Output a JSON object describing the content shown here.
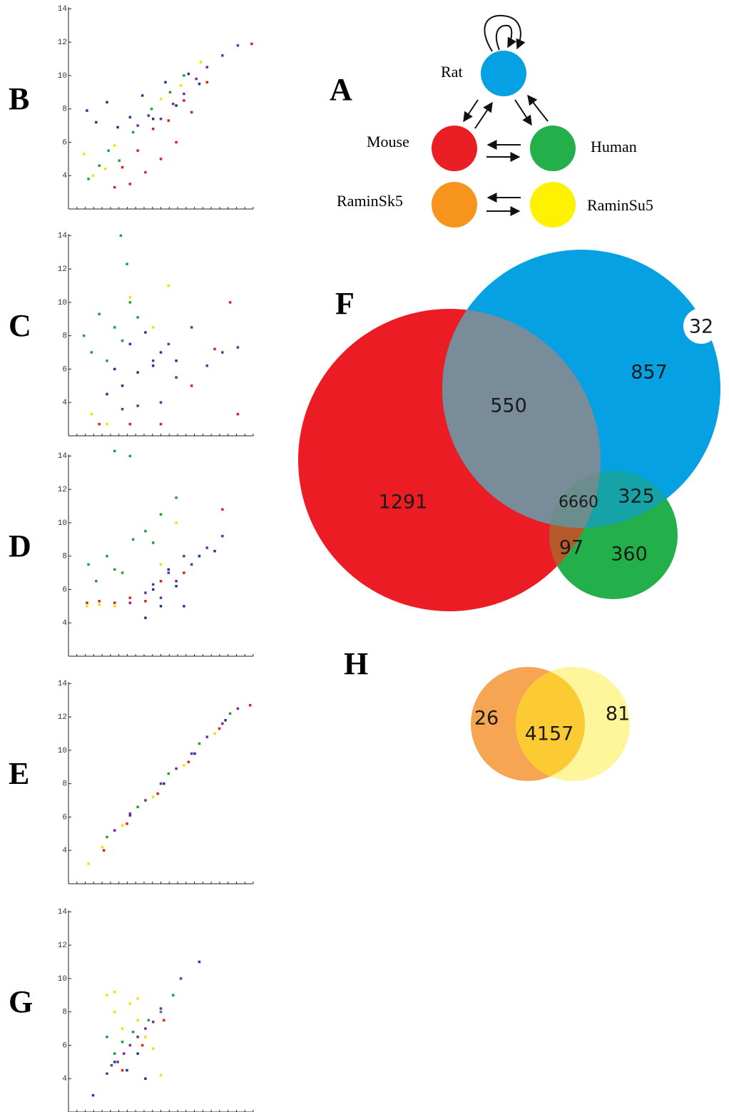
{
  "chart_data": [
    {
      "type": "scatter",
      "panel_label": "B",
      "xlim": [
        2,
        14
      ],
      "ylim": [
        2,
        14.1
      ],
      "yticks": [
        4,
        6,
        8,
        10,
        12,
        14
      ],
      "series": [
        {
          "color": "#1f3a93",
          "x": [
            3.2,
            3.8,
            4.5,
            5.2,
            6.0,
            6.8,
            7.5,
            8.3,
            9.0,
            9.8,
            10.5
          ],
          "y": [
            7.9,
            7.2,
            8.4,
            6.9,
            7.5,
            8.8,
            7.4,
            9.6,
            8.2,
            10.1,
            9.5
          ]
        },
        {
          "color": "#22a040",
          "x": [
            3.3,
            4.0,
            4.6,
            5.3,
            6.2,
            7.4,
            8.6,
            9.5
          ],
          "y": [
            3.8,
            4.6,
            5.5,
            4.9,
            6.6,
            8.0,
            9.0,
            10.0
          ]
        },
        {
          "color": "#f2e200",
          "x": [
            3.0,
            3.6,
            4.4,
            5.0,
            8.0,
            9.3,
            10.6
          ],
          "y": [
            5.3,
            4.0,
            4.4,
            5.8,
            8.6,
            9.4,
            10.8
          ]
        },
        {
          "color": "#e02020",
          "x": [
            5.0,
            5.5,
            6.0,
            6.5,
            7.0,
            7.5,
            8.0,
            8.5,
            9.0,
            9.5,
            10.0,
            11.0,
            13.9
          ],
          "y": [
            3.3,
            4.5,
            3.5,
            5.5,
            4.2,
            6.8,
            5.0,
            7.3,
            6.0,
            8.5,
            7.8,
            9.6,
            11.9
          ]
        },
        {
          "color": "#7b2a9a",
          "x": [
            6.5,
            7.2,
            8.0,
            8.8,
            9.5,
            10.3,
            11.0,
            12.0,
            13.0
          ],
          "y": [
            7.0,
            7.6,
            7.4,
            8.3,
            8.9,
            9.8,
            10.5,
            11.2,
            11.8
          ]
        }
      ]
    },
    {
      "type": "scatter",
      "panel_label": "C",
      "xlim": [
        2,
        14
      ],
      "ylim": [
        2,
        14.1
      ],
      "yticks": [
        4,
        6,
        8,
        10,
        12,
        14
      ],
      "series": [
        {
          "color": "#22a040",
          "x": [
            3.0,
            3.5,
            4.0,
            4.5,
            5.0,
            5.5,
            6.0,
            6.5,
            5.4,
            5.8
          ],
          "y": [
            8.0,
            7.0,
            9.3,
            6.5,
            8.5,
            7.7,
            10.0,
            9.1,
            14.0,
            12.3
          ]
        },
        {
          "color": "#1f3a93",
          "x": [
            4.5,
            5.0,
            5.5,
            6.0,
            6.5,
            7.0,
            7.5,
            8.0,
            9.0
          ],
          "y": [
            4.5,
            6.0,
            5.0,
            7.5,
            5.8,
            8.2,
            6.2,
            7.0,
            6.5
          ]
        },
        {
          "color": "#e02020",
          "x": [
            4.0,
            6.0,
            8.0,
            10.0,
            11.5,
            12.5,
            13.0
          ],
          "y": [
            2.7,
            2.7,
            2.7,
            5.0,
            7.2,
            10.0,
            3.3
          ]
        },
        {
          "color": "#f2e200",
          "x": [
            3.5,
            4.5,
            6.0,
            7.5,
            8.5
          ],
          "y": [
            3.3,
            2.7,
            10.3,
            8.5,
            11.0
          ]
        },
        {
          "color": "#7b2a9a",
          "x": [
            5.5,
            6.5,
            7.5,
            8.0,
            8.5,
            9.0,
            10.0,
            11.0,
            12.0,
            13.0
          ],
          "y": [
            3.6,
            3.8,
            6.5,
            4.0,
            7.5,
            5.5,
            8.5,
            6.2,
            7.0,
            7.3
          ]
        }
      ]
    },
    {
      "type": "scatter",
      "panel_label": "D",
      "xlim": [
        2,
        14
      ],
      "ylim": [
        2,
        14.1
      ],
      "yticks": [
        4,
        6,
        8,
        10,
        12,
        14
      ],
      "series": [
        {
          "color": "#22a040",
          "x": [
            3.3,
            3.8,
            4.5,
            5.0,
            5.5,
            6.2,
            7.0,
            7.5,
            8.0,
            9.0,
            5.0,
            6.0
          ],
          "y": [
            7.5,
            6.5,
            8.0,
            7.2,
            7.0,
            9.0,
            9.5,
            8.8,
            10.5,
            11.5,
            14.3,
            14.0
          ]
        },
        {
          "color": "#e02020",
          "x": [
            3.2,
            4.0,
            5.0,
            6.0,
            7.0,
            8.0,
            9.5,
            12.0
          ],
          "y": [
            5.2,
            5.3,
            5.2,
            5.5,
            5.3,
            6.5,
            7.0,
            10.8
          ]
        },
        {
          "color": "#f2e200",
          "x": [
            3.2,
            4.0,
            5.0,
            8.0,
            9.0
          ],
          "y": [
            5.0,
            5.1,
            5.0,
            7.5,
            10.0
          ]
        },
        {
          "color": "#1f3a93",
          "x": [
            7.0,
            7.5,
            8.0,
            8.5,
            9.0,
            9.5,
            10.5,
            11.5
          ],
          "y": [
            4.3,
            6.0,
            5.0,
            7.2,
            6.2,
            5.0,
            8.0,
            8.3
          ]
        },
        {
          "color": "#7b2a9a",
          "x": [
            6.0,
            7.0,
            7.5,
            8.0,
            8.5,
            9.0,
            9.5,
            10.0,
            11.0,
            12.0
          ],
          "y": [
            5.2,
            5.8,
            6.3,
            5.5,
            7.0,
            6.5,
            8.0,
            7.5,
            8.5,
            9.2
          ]
        }
      ]
    },
    {
      "type": "scatter",
      "panel_label": "E",
      "xlim": [
        2,
        14
      ],
      "ylim": [
        2,
        14.1
      ],
      "yticks": [
        4,
        6,
        8,
        10,
        12,
        14
      ],
      "series": [
        {
          "color": "#e02020",
          "x": [
            4.3,
            5.8,
            7.8,
            9.8,
            11.8,
            13.8
          ],
          "y": [
            4.0,
            5.6,
            7.4,
            9.3,
            11.3,
            12.7
          ]
        },
        {
          "color": "#f2e200",
          "x": [
            3.3,
            4.2,
            5.5,
            7.5,
            9.5,
            11.5
          ],
          "y": [
            3.2,
            4.2,
            5.5,
            7.2,
            9.1,
            11.0
          ]
        },
        {
          "color": "#22a040",
          "x": [
            4.5,
            6.5,
            8.5,
            10.5,
            12.5
          ],
          "y": [
            4.8,
            6.6,
            8.6,
            10.4,
            12.2
          ]
        },
        {
          "color": "#1f3a93",
          "x": [
            6.0,
            8.2,
            10.2,
            12.2
          ],
          "y": [
            6.1,
            8.0,
            9.8,
            11.8
          ]
        },
        {
          "color": "#7b2a9a",
          "x": [
            5,
            6,
            7,
            8,
            9,
            10,
            11,
            12,
            13
          ],
          "y": [
            5.2,
            6.2,
            7.0,
            8.0,
            8.9,
            9.8,
            10.8,
            11.6,
            12.5
          ]
        }
      ]
    },
    {
      "type": "scatter",
      "panel_label": "G",
      "xlim": [
        2,
        14
      ],
      "ylim": [
        2,
        14.1
      ],
      "yticks": [
        4,
        6,
        8,
        10,
        12,
        14
      ],
      "series": [
        {
          "color": "#f2e200",
          "x": [
            4.5,
            5.0,
            5.5,
            6.0,
            6.5,
            7.0,
            7.5,
            8.0,
            5.0,
            6.5
          ],
          "y": [
            9.0,
            8.0,
            7.0,
            8.5,
            7.5,
            6.5,
            5.8,
            4.2,
            9.2,
            8.8
          ]
        },
        {
          "color": "#22a040",
          "x": [
            4.5,
            5.0,
            5.5,
            6.2,
            7.2,
            8.0,
            8.8
          ],
          "y": [
            6.5,
            5.5,
            6.2,
            6.8,
            7.5,
            8.0,
            9.0
          ]
        },
        {
          "color": "#1f3a93",
          "x": [
            5.0,
            5.8,
            6.5,
            7.0,
            10.5,
            3.6
          ],
          "y": [
            5.0,
            4.5,
            5.5,
            4.0,
            11.0,
            3.0
          ]
        },
        {
          "color": "#e02020",
          "x": [
            5.5,
            6.8,
            8.2
          ],
          "y": [
            4.5,
            6.0,
            7.5
          ]
        },
        {
          "color": "#7b2a9a",
          "x": [
            4.5,
            4.8,
            5.2,
            5.6,
            6.0,
            6.5,
            7.0,
            7.5,
            8.0,
            9.3
          ],
          "y": [
            4.3,
            4.8,
            5.0,
            5.5,
            6.0,
            6.5,
            7.0,
            7.4,
            8.2,
            10.0
          ]
        }
      ]
    }
  ],
  "diagram_A": {
    "panel_label": "A",
    "nodes": [
      "Rat",
      "Mouse",
      "Human",
      "RaminSk5",
      "RaminSu5"
    ]
  },
  "venn_F": {
    "panel_label": "F",
    "regions": [
      1291,
      550,
      857,
      32,
      6660,
      325,
      97,
      360
    ]
  },
  "venn_H": {
    "panel_label": "H",
    "regions": [
      26,
      4157,
      81
    ]
  }
}
